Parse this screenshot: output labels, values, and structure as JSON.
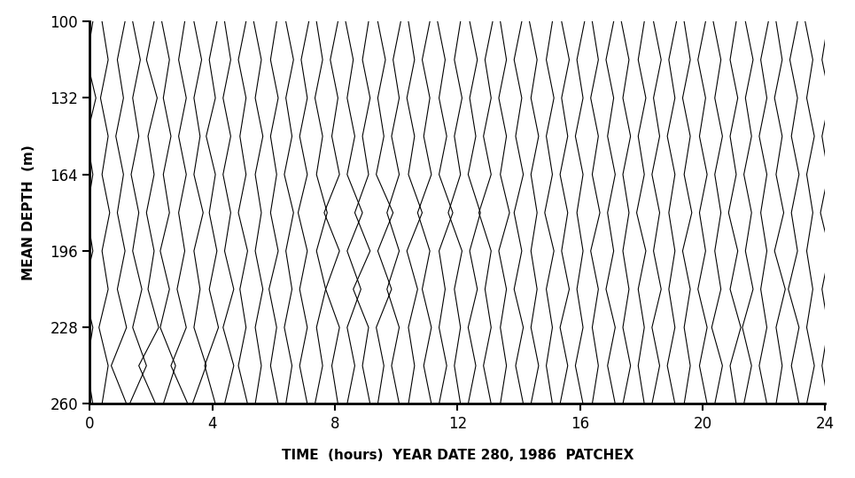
{
  "chart_data": {
    "type": "line",
    "xlabel": "TIME  (hours)  YEAR DATE 280, 1986  PATCHEX",
    "ylabel": "MEAN DEPTH  (m)",
    "xlim": [
      0,
      24
    ],
    "xticks": [
      0,
      4,
      8,
      12,
      16,
      20,
      24
    ],
    "ylim": [
      260,
      100
    ],
    "yticks": [
      100,
      132,
      164,
      196,
      228,
      260
    ],
    "color": "#000000",
    "grid": false,
    "depths": [
      100,
      116,
      132,
      148,
      164,
      180,
      196,
      212,
      228,
      244,
      260
    ],
    "x": [
      0,
      0.5,
      1,
      1.5,
      2,
      2.5,
      3,
      3.5,
      4,
      4.5,
      5,
      5.5,
      6,
      6.5,
      7,
      7.5,
      8,
      8.5,
      9,
      9.5,
      10,
      10.5,
      11,
      11.5,
      12,
      12.5,
      13,
      13.5,
      14,
      14.5,
      15,
      15.5,
      16,
      16.5,
      17,
      17.5,
      18,
      18.5,
      19,
      19.5,
      20,
      20.5,
      21,
      21.5,
      22,
      22.5,
      23,
      23.5,
      24
    ],
    "profiles": [
      [
        0.1,
        -0.1,
        0.2,
        -0.1,
        0.1,
        -0.1,
        0.1,
        -0.2,
        0.1,
        -0.1,
        0.1
      ],
      [
        -0.1,
        0.1,
        -0.15,
        0.1,
        -0.1,
        0.15,
        -0.1,
        0.1,
        -0.2,
        0.1,
        -0.1
      ],
      [
        0.15,
        -0.1,
        0.1,
        -0.15,
        0.1,
        -0.1,
        0.15,
        -0.1,
        0.2,
        -0.3,
        0.2
      ],
      [
        -0.1,
        0.15,
        -0.1,
        0.1,
        -0.15,
        0.1,
        -0.1,
        0.2,
        -0.1,
        0.35,
        -0.2
      ],
      [
        0.1,
        -0.15,
        0.2,
        -0.1,
        0.1,
        -0.15,
        0.1,
        -0.1,
        0.25,
        -0.4,
        0.15
      ],
      [
        -0.15,
        0.1,
        -0.1,
        0.15,
        -0.1,
        0.1,
        -0.2,
        0.1,
        -0.2,
        0.3,
        -0.1
      ],
      [
        0.1,
        -0.1,
        0.15,
        -0.1,
        0.15,
        -0.1,
        0.1,
        -0.15,
        0.15,
        -0.35,
        0.2
      ],
      [
        -0.1,
        0.15,
        -0.1,
        0.1,
        -0.1,
        0.2,
        -0.1,
        0.1,
        -0.1,
        0.3,
        -0.15
      ],
      [
        0.15,
        -0.1,
        0.1,
        -0.2,
        0.1,
        -0.1,
        0.15,
        -0.1,
        0.2,
        -0.25,
        0.1
      ],
      [
        -0.1,
        0.1,
        -0.15,
        0.1,
        -0.15,
        0.1,
        -0.1,
        0.2,
        -0.15,
        0.2,
        -0.1
      ],
      [
        0.1,
        -0.15,
        0.1,
        -0.1,
        0.1,
        -0.15,
        0.15,
        -0.1,
        0.1,
        -0.15,
        0.15
      ],
      [
        -0.15,
        0.1,
        -0.1,
        0.15,
        -0.1,
        0.1,
        -0.1,
        0.15,
        -0.1,
        0.1,
        -0.1
      ],
      [
        0.1,
        -0.1,
        0.15,
        -0.1,
        0.1,
        -0.1,
        0.15,
        -0.15,
        0.1,
        -0.1,
        0.15
      ],
      [
        -0.1,
        0.15,
        -0.1,
        0.1,
        -0.15,
        0.15,
        -0.1,
        0.1,
        -0.15,
        0.1,
        -0.1
      ],
      [
        0.15,
        -0.1,
        0.1,
        -0.15,
        0.1,
        -0.2,
        0.1,
        -0.15,
        0.1,
        -0.15,
        0.1
      ],
      [
        -0.1,
        0.1,
        -0.15,
        0.1,
        -0.1,
        0.25,
        -0.1,
        0.2,
        -0.1,
        0.1,
        -0.15
      ],
      [
        0.1,
        -0.15,
        0.1,
        -0.1,
        0.15,
        -0.35,
        0.15,
        -0.3,
        0.15,
        -0.1,
        0.1
      ],
      [
        -0.15,
        0.1,
        -0.1,
        0.15,
        -0.1,
        0.4,
        -0.1,
        0.35,
        -0.1,
        0.15,
        -0.1
      ],
      [
        0.1,
        -0.1,
        0.15,
        -0.1,
        0.1,
        -0.35,
        0.15,
        -0.4,
        0.1,
        -0.1,
        0.15
      ],
      [
        -0.1,
        0.15,
        -0.1,
        0.1,
        -0.15,
        0.4,
        -0.1,
        0.35,
        -0.15,
        0.1,
        -0.1
      ],
      [
        0.15,
        -0.1,
        0.1,
        -0.15,
        0.1,
        -0.3,
        0.1,
        -0.3,
        0.1,
        -0.15,
        0.1
      ],
      [
        -0.1,
        0.1,
        -0.15,
        0.1,
        -0.1,
        0.35,
        -0.15,
        0.2,
        -0.1,
        0.1,
        -0.1
      ],
      [
        0.1,
        -0.15,
        0.1,
        -0.1,
        0.15,
        -0.3,
        0.1,
        -0.15,
        0.15,
        -0.1,
        0.15
      ],
      [
        -0.15,
        0.1,
        -0.1,
        0.15,
        -0.1,
        0.35,
        -0.1,
        0.1,
        -0.1,
        0.15,
        -0.1
      ],
      [
        0.1,
        -0.1,
        0.15,
        -0.1,
        0.1,
        -0.3,
        0.15,
        -0.1,
        0.1,
        -0.1,
        0.1
      ],
      [
        -0.1,
        0.15,
        -0.1,
        0.1,
        -0.15,
        0.25,
        -0.1,
        0.15,
        -0.15,
        0.1,
        -0.15
      ],
      [
        0.15,
        -0.1,
        0.1,
        -0.15,
        0.1,
        -0.3,
        0.1,
        -0.1,
        0.1,
        -0.15,
        0.1
      ],
      [
        -0.1,
        0.1,
        -0.15,
        0.1,
        -0.1,
        0.2,
        -0.15,
        0.1,
        -0.1,
        0.1,
        -0.1
      ],
      [
        0.1,
        -0.15,
        0.1,
        -0.1,
        0.15,
        -0.15,
        0.1,
        -0.15,
        0.15,
        -0.1,
        0.15
      ],
      [
        -0.15,
        0.1,
        -0.1,
        0.15,
        -0.1,
        0.1,
        -0.1,
        0.1,
        -0.1,
        0.15,
        -0.1
      ],
      [
        0.1,
        -0.1,
        0.15,
        -0.1,
        0.1,
        -0.15,
        0.15,
        -0.1,
        0.1,
        -0.1,
        0.1
      ],
      [
        -0.1,
        0.15,
        -0.1,
        0.1,
        -0.15,
        0.1,
        -0.1,
        0.15,
        -0.15,
        0.1,
        -0.15
      ],
      [
        0.15,
        -0.1,
        0.1,
        -0.15,
        0.1,
        -0.1,
        0.1,
        -0.1,
        0.1,
        -0.15,
        0.1
      ],
      [
        -0.1,
        0.1,
        -0.15,
        0.1,
        -0.1,
        0.15,
        -0.15,
        0.1,
        -0.1,
        0.1,
        -0.1
      ],
      [
        0.1,
        -0.15,
        0.1,
        -0.1,
        0.15,
        -0.1,
        0.1,
        -0.15,
        0.15,
        -0.1,
        0.15
      ],
      [
        -0.15,
        0.1,
        -0.1,
        0.15,
        -0.1,
        0.1,
        -0.1,
        0.1,
        -0.1,
        0.15,
        -0.1
      ],
      [
        0.1,
        -0.1,
        0.15,
        -0.1,
        0.1,
        -0.15,
        0.15,
        -0.1,
        0.1,
        -0.1,
        0.1
      ],
      [
        -0.1,
        0.15,
        -0.1,
        0.1,
        -0.15,
        0.1,
        -0.1,
        0.15,
        -0.15,
        0.1,
        -0.15
      ],
      [
        0.15,
        -0.1,
        0.1,
        -0.15,
        0.1,
        -0.1,
        0.1,
        -0.1,
        0.1,
        -0.15,
        0.1
      ],
      [
        -0.1,
        0.1,
        -0.15,
        0.1,
        -0.1,
        0.15,
        -0.15,
        0.1,
        -0.1,
        0.1,
        -0.1
      ],
      [
        0.1,
        -0.15,
        0.1,
        -0.1,
        0.15,
        -0.1,
        0.1,
        -0.15,
        0.15,
        -0.1,
        0.15
      ],
      [
        -0.15,
        0.1,
        -0.1,
        0.15,
        -0.1,
        0.1,
        -0.1,
        0.1,
        -0.2,
        0.15,
        -0.1
      ],
      [
        0.1,
        -0.1,
        0.15,
        -0.1,
        0.1,
        -0.15,
        0.15,
        -0.1,
        0.25,
        -0.1,
        0.1
      ],
      [
        -0.1,
        0.15,
        -0.1,
        0.1,
        -0.15,
        0.1,
        -0.1,
        0.15,
        -0.2,
        0.1,
        -0.15
      ],
      [
        0.15,
        -0.1,
        0.1,
        -0.15,
        0.1,
        -0.1,
        0.1,
        -0.1,
        0.1,
        -0.15,
        0.1
      ],
      [
        -0.1,
        0.1,
        -0.15,
        0.1,
        -0.1,
        0.15,
        -0.15,
        0.2,
        -0.1,
        0.1,
        -0.1
      ],
      [
        0.1,
        -0.15,
        0.1,
        -0.1,
        0.15,
        -0.1,
        0.1,
        -0.2,
        0.15,
        -0.1,
        0.15
      ],
      [
        -0.15,
        0.1,
        -0.1,
        0.15,
        -0.1,
        0.1,
        -0.1,
        0.1,
        -0.1,
        0.15,
        -0.1
      ],
      [
        0.1,
        -0.1,
        0.15,
        -0.1,
        0.1,
        -0.15,
        0.15,
        -0.1,
        0.1,
        -0.1,
        0.1
      ]
    ]
  }
}
